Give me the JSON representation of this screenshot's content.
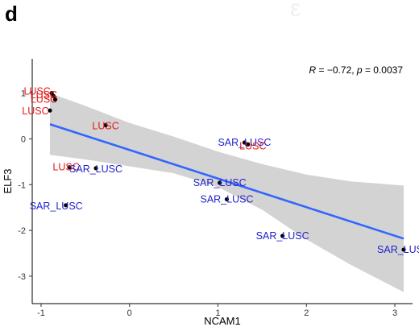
{
  "panel_label": "d",
  "watermark": "ε",
  "chart_data": {
    "type": "scatter",
    "title": "",
    "xlabel": "NCAM1",
    "ylabel": "ELF3",
    "xlim": [
      -1.1,
      3.2
    ],
    "ylim": [
      -3.6,
      1.75
    ],
    "x_ticks": [
      -1,
      0,
      1,
      2,
      3
    ],
    "y_ticks": [
      -3,
      -2,
      -1,
      0,
      1
    ],
    "annotation": "R = −0.72, p = 0.0037",
    "annotation_parts": {
      "r_label": "R",
      "r_value": " = −0.72, ",
      "p_label": "p",
      "p_value": " = 0.0037"
    },
    "regression": {
      "x": [
        -0.9,
        3.1
      ],
      "y": [
        0.32,
        -2.18
      ],
      "color": "#3366ff"
    },
    "confidence_band": {
      "x": [
        -0.9,
        -0.5,
        0.0,
        0.5,
        1.0,
        1.5,
        2.0,
        2.5,
        3.1
      ],
      "upper": [
        1.0,
        0.72,
        0.35,
        0.05,
        -0.28,
        -0.55,
        -0.78,
        -0.93,
        -1.02
      ],
      "lower": [
        -0.35,
        -0.45,
        -0.6,
        -0.75,
        -1.05,
        -1.55,
        -2.2,
        -2.75,
        -3.35
      ],
      "color": "#d3d3d3"
    },
    "colors": {
      "LUSC": "#e41a1c",
      "SAR_LUSC": "#2222cc"
    },
    "points": [
      {
        "x": -0.88,
        "y": 1.0,
        "label": "LUSC",
        "group": "LUSC",
        "dx": -18,
        "dy": 2
      },
      {
        "x": -0.86,
        "y": 0.94,
        "label": "LUSC",
        "group": "LUSC",
        "dx": -12,
        "dy": 3
      },
      {
        "x": -0.84,
        "y": 0.86,
        "label": "LUSC",
        "group": "LUSC",
        "dx": -14,
        "dy": 4
      },
      {
        "x": -0.9,
        "y": 0.62,
        "label": "LUSC",
        "group": "LUSC",
        "dx": -18,
        "dy": 5
      },
      {
        "x": -0.27,
        "y": 0.3,
        "label": "LUSC",
        "group": "LUSC",
        "dx": 0,
        "dy": 5
      },
      {
        "x": -0.68,
        "y": -0.62,
        "label": "LUSC",
        "group": "LUSC",
        "dx": -4,
        "dy": 4
      },
      {
        "x": -0.38,
        "y": -0.64,
        "label": "SAR_LUSC",
        "group": "SAR_LUSC",
        "dx": 0,
        "dy": 5
      },
      {
        "x": -0.72,
        "y": -1.45,
        "label": "SAR_LUSC",
        "group": "SAR_LUSC",
        "dx": -12,
        "dy": 5
      },
      {
        "x": 1.3,
        "y": -0.08,
        "label": "SAR_LUSC",
        "group": "SAR_LUSC",
        "dx": 0,
        "dy": 4
      },
      {
        "x": 1.34,
        "y": -0.12,
        "label": "LUSC",
        "group": "LUSC",
        "dx": 6,
        "dy": 6
      },
      {
        "x": 1.02,
        "y": -0.96,
        "label": "SAR_LUSC",
        "group": "SAR_LUSC",
        "dx": 0,
        "dy": 4
      },
      {
        "x": 1.1,
        "y": -1.32,
        "label": "SAR_LUSC",
        "group": "SAR_LUSC",
        "dx": 0,
        "dy": 4
      },
      {
        "x": 1.73,
        "y": -2.12,
        "label": "SAR_LUSC",
        "group": "SAR_LUSC",
        "dx": 0,
        "dy": 4
      },
      {
        "x": 3.1,
        "y": -2.42,
        "label": "SAR_LUSC",
        "group": "SAR_LUSC",
        "dx": 0,
        "dy": 4
      }
    ]
  }
}
